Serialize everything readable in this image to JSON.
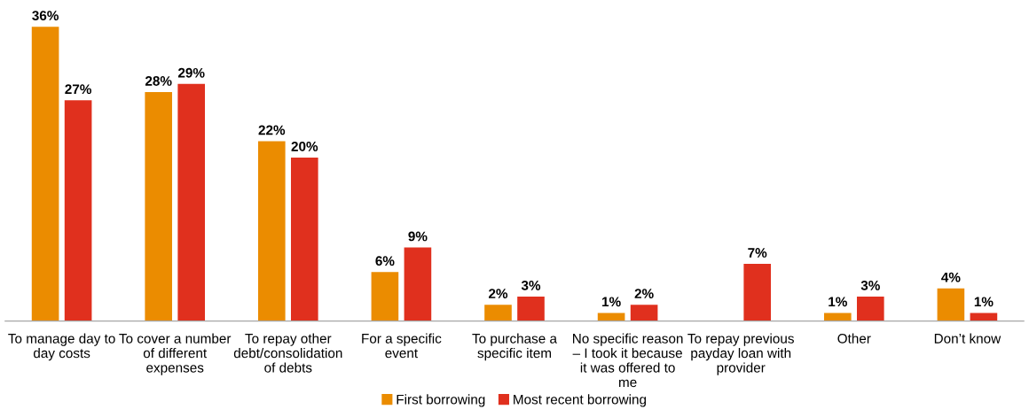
{
  "chart_data": {
    "type": "bar",
    "categories": [
      "To manage day to\nday costs",
      "To cover a number\nof different\nexpenses",
      "To repay other\ndebt/consolidation\nof debts",
      "For a specific\nevent",
      "To purchase a\nspecific item",
      "No specific reason\n– I took it because\nit was offered to\nme",
      "To repay previous\npayday loan with\nprovider",
      "Other",
      "Don’t know"
    ],
    "series": [
      {
        "name": "First borrowing",
        "color": "#eb8c00",
        "values": [
          36,
          28,
          22,
          6,
          2,
          1,
          null,
          1,
          4
        ],
        "value_labels": [
          "36%",
          "28%",
          "22%",
          "6%",
          "2%",
          "1%",
          null,
          "1%",
          "4%"
        ]
      },
      {
        "name": "Most recent borrowing",
        "color": "#e0301e",
        "values": [
          27,
          29,
          20,
          9,
          3,
          2,
          7,
          3,
          1
        ],
        "value_labels": [
          "27%",
          "29%",
          "20%",
          "9%",
          "3%",
          "2%",
          "7%",
          "3%",
          "1%"
        ]
      }
    ],
    "grid": false,
    "legend": "bottom"
  }
}
